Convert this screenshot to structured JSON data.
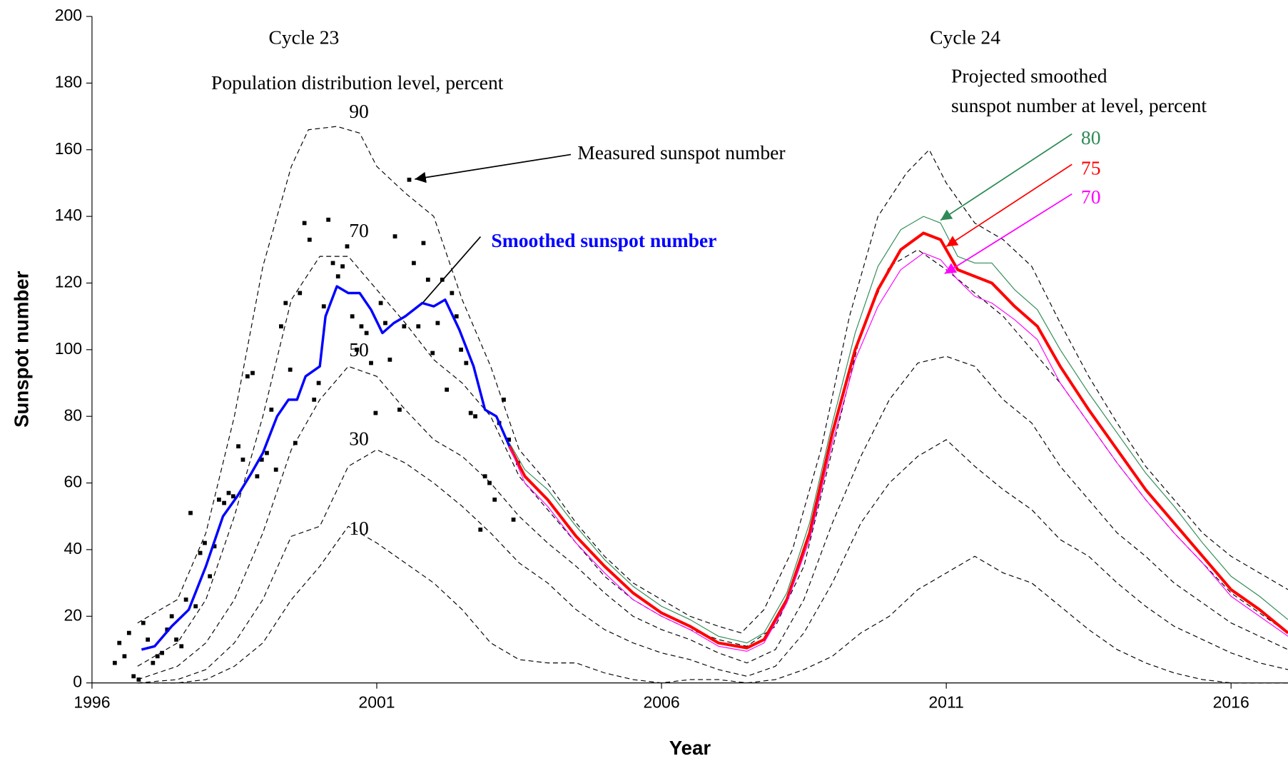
{
  "chart_data": {
    "type": "line",
    "x_label": "Year",
    "y_label": "Sunspot number",
    "xlim": [
      1996,
      2017
    ],
    "ylim": [
      0,
      200
    ],
    "xticks": [
      1996,
      2001,
      2006,
      2011,
      2016
    ],
    "yticks": [
      0,
      20,
      40,
      60,
      80,
      100,
      120,
      140,
      160,
      180,
      200
    ],
    "annotations": [
      "Cycle 23",
      "Population distribution level, percent",
      "Cycle 24",
      "Projected smoothed",
      "sunspot number at level, percent"
    ],
    "series": [
      {
        "name": "Measured sunspot number",
        "type": "scatter",
        "color": "#000000",
        "x": [
          1996.4,
          1996.48,
          1996.57,
          1996.65,
          1996.73,
          1996.82,
          1996.9,
          1996.98,
          1997.07,
          1997.15,
          1997.23,
          1997.32,
          1997.4,
          1997.48,
          1997.57,
          1997.65,
          1997.73,
          1997.82,
          1997.9,
          1997.98,
          1998.07,
          1998.15,
          1998.23,
          1998.32,
          1998.4,
          1998.48,
          1998.57,
          1998.65,
          1998.73,
          1998.82,
          1998.9,
          1998.98,
          1999.07,
          1999.15,
          1999.23,
          1999.32,
          1999.4,
          1999.48,
          1999.57,
          1999.65,
          1999.73,
          1999.82,
          1999.9,
          1999.98,
          2000.07,
          2000.15,
          2000.23,
          2000.32,
          2000.4,
          2000.48,
          2000.57,
          2000.65,
          2000.73,
          2000.82,
          2000.9,
          2000.98,
          2001.07,
          2001.15,
          2001.23,
          2001.32,
          2001.4,
          2001.48,
          2001.57,
          2001.65,
          2001.73,
          2001.82,
          2001.9,
          2001.98,
          2002.07,
          2002.15,
          2002.23,
          2002.32,
          2002.4,
          2002.48,
          2002.57,
          2002.65,
          2002.73,
          2002.82,
          2002.9,
          2002.98,
          2003.07,
          2003.15,
          2003.23,
          2003.32,
          2003.4,
          2003.48
        ],
        "values": [
          6,
          12,
          8,
          15,
          2,
          1,
          18,
          13,
          6,
          8,
          9,
          16,
          20,
          13,
          11,
          25,
          51,
          23,
          39,
          42,
          32,
          41,
          55,
          54,
          57,
          56,
          71,
          67,
          92,
          93,
          62,
          67,
          69,
          82,
          64,
          107,
          114,
          94,
          72,
          117,
          138,
          133,
          85,
          90,
          113,
          139,
          126,
          122,
          125,
          131,
          110,
          100,
          107,
          105,
          96,
          81,
          114,
          108,
          97,
          134,
          82,
          107,
          151,
          126,
          107,
          132,
          121,
          99,
          108,
          121,
          88,
          117,
          110,
          100,
          96,
          81,
          80,
          46,
          62,
          60,
          55,
          78,
          85,
          73,
          49,
          66
        ]
      },
      {
        "name": "90",
        "type": "line",
        "color": "#000000",
        "linestyle": "dashed",
        "linewidth": 1,
        "x": [
          1996.8,
          1997.5,
          1998,
          1998.5,
          1999,
          1999.5,
          1999.8,
          2000.3,
          2000.7,
          2001,
          2001.5,
          2002,
          2002.5,
          2003,
          2003.5,
          2004,
          2004.5,
          2005,
          2005.5,
          2006,
          2006.5,
          2007,
          2007.4,
          2007.8,
          2008.3,
          2008.8,
          2009.3,
          2009.8,
          2010.3,
          2010.7,
          2011,
          2011.5,
          2012,
          2012.5,
          2013,
          2013.5,
          2014,
          2014.5,
          2015,
          2015.5,
          2016,
          2016.5,
          2017
        ],
        "values": [
          18,
          25,
          45,
          80,
          125,
          155,
          166,
          167,
          165,
          155,
          147,
          140,
          115,
          95,
          70,
          60,
          48,
          38,
          30,
          25,
          20,
          17,
          15,
          22,
          40,
          70,
          110,
          140,
          153,
          160,
          150,
          138,
          133,
          125,
          108,
          92,
          78,
          65,
          55,
          45,
          38,
          33,
          28
        ]
      },
      {
        "name": "70",
        "type": "line",
        "color": "#000000",
        "linestyle": "dashed",
        "linewidth": 1,
        "x": [
          1996.8,
          1997.5,
          1998,
          1998.5,
          1999,
          1999.5,
          2000,
          2000.5,
          2001,
          2001.5,
          2002,
          2002.5,
          2003,
          2003.5,
          2004,
          2004.5,
          2005,
          2005.5,
          2006,
          2006.5,
          2007,
          2007.5,
          2008,
          2008.5,
          2009,
          2009.5,
          2010,
          2010.5,
          2011,
          2011.5,
          2012,
          2012.5,
          2013,
          2013.5,
          2014,
          2014.5,
          2015,
          2015.5,
          2016,
          2016.5,
          2017
        ],
        "values": [
          5,
          12,
          25,
          50,
          80,
          115,
          128,
          128,
          118,
          108,
          97,
          90,
          80,
          62,
          52,
          42,
          32,
          25,
          20,
          16,
          13,
          11,
          17,
          35,
          70,
          105,
          125,
          130,
          124,
          117,
          110,
          100,
          90,
          78,
          66,
          55,
          45,
          36,
          27,
          21,
          15
        ]
      },
      {
        "name": "50",
        "type": "line",
        "color": "#000000",
        "linestyle": "dashed",
        "linewidth": 1,
        "x": [
          1996.8,
          1997.5,
          1998,
          1998.5,
          1999,
          1999.5,
          2000,
          2000.5,
          2001,
          2001.5,
          2002,
          2002.5,
          2003,
          2003.5,
          2004,
          2004.5,
          2005,
          2005.5,
          2006,
          2006.5,
          2007,
          2007.5,
          2008,
          2008.5,
          2009,
          2009.5,
          2010,
          2010.5,
          2011,
          2011.5,
          2012,
          2012.5,
          2013,
          2013.5,
          2014,
          2014.5,
          2015,
          2015.5,
          2016,
          2016.5,
          2017
        ],
        "values": [
          1,
          5,
          12,
          25,
          45,
          70,
          85,
          95,
          92,
          82,
          73,
          68,
          60,
          50,
          42,
          35,
          27,
          20,
          16,
          13,
          9,
          6,
          10,
          25,
          48,
          68,
          85,
          96,
          98,
          95,
          85,
          78,
          65,
          55,
          45,
          38,
          30,
          24,
          18,
          14,
          10
        ]
      },
      {
        "name": "30",
        "type": "line",
        "color": "#000000",
        "linestyle": "dashed",
        "linewidth": 1,
        "x": [
          1996.8,
          1997.5,
          1998,
          1998.5,
          1999,
          1999.5,
          2000,
          2000.5,
          2001,
          2001.5,
          2002,
          2002.5,
          2003,
          2003.5,
          2004,
          2004.5,
          2005,
          2005.5,
          2006,
          2006.5,
          2007,
          2007.5,
          2008,
          2008.5,
          2009,
          2009.5,
          2010,
          2010.5,
          2011,
          2011.5,
          2012,
          2012.5,
          2013,
          2013.5,
          2014,
          2014.5,
          2015,
          2015.5,
          2016,
          2016.5,
          2017
        ],
        "values": [
          0,
          1,
          4,
          12,
          25,
          44,
          47,
          65,
          70,
          66,
          60,
          53,
          45,
          36,
          30,
          22,
          16,
          12,
          9,
          7,
          4,
          2,
          5,
          15,
          30,
          48,
          60,
          68,
          73,
          65,
          58,
          52,
          43,
          38,
          30,
          23,
          17,
          13,
          9,
          6,
          4
        ]
      },
      {
        "name": "10",
        "type": "line",
        "color": "#000000",
        "linestyle": "dashed",
        "linewidth": 1,
        "x": [
          1996.8,
          1997.5,
          1998,
          1998.5,
          1999,
          1999.5,
          2000,
          2000.5,
          2001,
          2001.5,
          2002,
          2002.5,
          2003,
          2003.5,
          2004,
          2004.5,
          2005,
          2005.5,
          2006,
          2006.5,
          2007,
          2007.5,
          2008,
          2008.5,
          2009,
          2009.5,
          2010,
          2010.5,
          2011,
          2011.5,
          2012,
          2012.5,
          2013,
          2013.5,
          2014,
          2014.5,
          2015,
          2015.5,
          2016,
          2016.5,
          2017
        ],
        "values": [
          0,
          0,
          1,
          5,
          12,
          25,
          35,
          47,
          42,
          36,
          30,
          22,
          12,
          7,
          6,
          6,
          3,
          1,
          0,
          1,
          1,
          0,
          1,
          4,
          8,
          15,
          20,
          28,
          33,
          38,
          33,
          30,
          23,
          16,
          10,
          6,
          3,
          1,
          0,
          0,
          0
        ]
      },
      {
        "name": "Smoothed sunspot number",
        "type": "line",
        "color": "#0000ff",
        "linestyle": "solid",
        "linewidth": 3,
        "x": [
          1996.87,
          1997.1,
          1997.4,
          1997.7,
          1998.0,
          1998.3,
          1998.55,
          1998.8,
          1999.0,
          1999.25,
          1999.45,
          1999.6,
          1999.75,
          2000.0,
          2000.1,
          2000.3,
          2000.5,
          2000.7,
          2000.9,
          2001.1,
          2001.3,
          2001.5,
          2001.8,
          2002.0,
          2002.2,
          2002.45,
          2002.7,
          2002.9,
          2003.1,
          2003.33
        ],
        "values": [
          10,
          11,
          17,
          22,
          35,
          50,
          56,
          63,
          69,
          80,
          85,
          85,
          92,
          95,
          110,
          119,
          117,
          117,
          112,
          105,
          108,
          110,
          114,
          113,
          115,
          106,
          95,
          82,
          80,
          71
        ]
      },
      {
        "name": "80",
        "type": "line",
        "color": "#2e8b57",
        "linestyle": "solid",
        "linewidth": 1,
        "x": [
          2003.33,
          2003.6,
          2004,
          2004.5,
          2005,
          2005.5,
          2006,
          2006.5,
          2007,
          2007.5,
          2007.8,
          2008.2,
          2008.6,
          2009,
          2009.4,
          2009.8,
          2010.2,
          2010.6,
          2010.9,
          2011.2,
          2011.5,
          2011.8,
          2012.2,
          2012.6,
          2013,
          2013.5,
          2014,
          2014.5,
          2015,
          2015.5,
          2016,
          2016.5,
          2017
        ],
        "values": [
          72,
          64,
          58,
          47,
          37,
          29,
          23,
          19,
          14,
          12,
          15,
          27,
          48,
          78,
          105,
          125,
          136,
          140,
          138,
          128,
          126,
          126,
          118,
          112,
          100,
          87,
          75,
          63,
          53,
          42,
          32,
          26,
          19
        ]
      },
      {
        "name": "75",
        "type": "line",
        "color": "#ff0000",
        "linestyle": "solid",
        "linewidth": 3.5,
        "x": [
          2003.33,
          2003.6,
          2004,
          2004.5,
          2005,
          2005.5,
          2006,
          2006.5,
          2007,
          2007.5,
          2007.8,
          2008.2,
          2008.6,
          2009,
          2009.4,
          2009.8,
          2010.2,
          2010.6,
          2010.9,
          2011.2,
          2011.5,
          2011.8,
          2012.2,
          2012.6,
          2013,
          2013.5,
          2014,
          2014.5,
          2015,
          2015.5,
          2016,
          2016.5,
          2017
        ],
        "values": [
          71,
          62,
          55,
          44,
          35,
          27,
          21,
          17,
          12,
          10.5,
          13,
          25,
          45,
          75,
          100,
          118,
          130,
          135,
          133,
          124,
          122,
          120,
          113,
          107,
          95,
          82,
          70,
          58,
          48,
          38,
          28,
          22,
          15
        ]
      },
      {
        "name": "70",
        "type": "line",
        "color": "#ff00ff",
        "linestyle": "solid",
        "linewidth": 1,
        "x": [
          2003.33,
          2003.6,
          2004,
          2004.5,
          2005,
          2005.5,
          2006,
          2006.5,
          2007,
          2007.5,
          2007.8,
          2008.2,
          2008.6,
          2009,
          2009.4,
          2009.8,
          2010.2,
          2010.6,
          2010.9,
          2011.2,
          2011.5,
          2011.8,
          2012.2,
          2012.6,
          2013,
          2013.5,
          2014,
          2014.5,
          2015,
          2015.5,
          2016,
          2016.5,
          2017
        ],
        "values": [
          71,
          60,
          53,
          42,
          33,
          25,
          20,
          16,
          11,
          9.5,
          12,
          24,
          43,
          72,
          97,
          113,
          124,
          129,
          127,
          121,
          116,
          114,
          109,
          103,
          90,
          78,
          66,
          55,
          45,
          36,
          26,
          20,
          14
        ]
      }
    ]
  }
}
